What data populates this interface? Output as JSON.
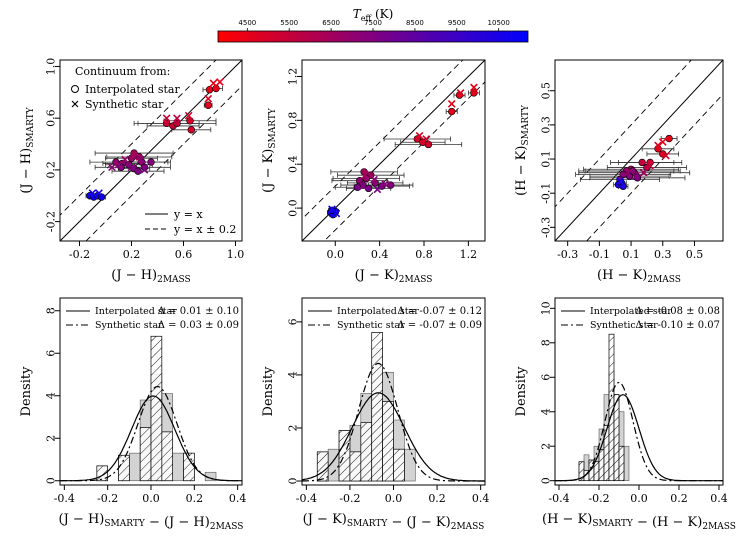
{
  "colorbar": {
    "label": "T_eff (K)",
    "ticks": [
      4500,
      5500,
      6500,
      7500,
      8500,
      9500,
      10500
    ],
    "range": [
      3800,
      11200
    ],
    "colors": [
      "#ff0000",
      "#0000ff"
    ]
  },
  "chart_data": [
    {
      "type": "scatter",
      "id": "jh",
      "xlabel": "(J − H)2MASS",
      "ylabel": "(J − H)SMARTY",
      "xlim": [
        -0.35,
        1.05
      ],
      "ylim": [
        -0.35,
        1.05
      ],
      "xticks": [
        -0.2,
        0.2,
        0.6,
        1.0
      ],
      "yticks": [
        -0.2,
        0.2,
        0.6,
        1.0
      ],
      "legend_title": "Continuum from:",
      "legend_markers": [
        "Interpolated star",
        "Synthetic star"
      ],
      "legend_lines": [
        "y = x",
        "y = x ± 0.2"
      ],
      "interpolated": [
        {
          "x": 0.8,
          "y": 0.82,
          "t": 4400,
          "ex": 0.05
        },
        {
          "x": 0.85,
          "y": 0.83,
          "t": 4500,
          "ex": 0.05
        },
        {
          "x": 0.79,
          "y": 0.7,
          "t": 4700,
          "ex": 0.03
        },
        {
          "x": 0.65,
          "y": 0.58,
          "t": 4900,
          "ex": 0.2
        },
        {
          "x": 0.66,
          "y": 0.51,
          "t": 5000,
          "ex": 0.15
        },
        {
          "x": 0.47,
          "y": 0.56,
          "t": 5300,
          "ex": 0.25
        },
        {
          "x": 0.52,
          "y": 0.54,
          "t": 5400,
          "ex": 0.2
        },
        {
          "x": 0.55,
          "y": 0.56,
          "t": 5500,
          "ex": 0.3
        },
        {
          "x": 0.22,
          "y": 0.33,
          "t": 6400,
          "ex": 0.3
        },
        {
          "x": 0.26,
          "y": 0.3,
          "t": 6600,
          "ex": 0.25
        },
        {
          "x": 0.2,
          "y": 0.29,
          "t": 6800,
          "ex": 0.2
        },
        {
          "x": 0.08,
          "y": 0.26,
          "t": 7000,
          "ex": 0.2
        },
        {
          "x": 0.13,
          "y": 0.25,
          "t": 7100,
          "ex": 0.15
        },
        {
          "x": 0.28,
          "y": 0.26,
          "t": 7200,
          "ex": 0.2
        },
        {
          "x": 0.18,
          "y": 0.24,
          "t": 7300,
          "ex": 0.18
        },
        {
          "x": 0.3,
          "y": 0.22,
          "t": 7400,
          "ex": 0.2
        },
        {
          "x": 0.22,
          "y": 0.21,
          "t": 7500,
          "ex": 0.12
        },
        {
          "x": 0.25,
          "y": 0.19,
          "t": 7600,
          "ex": 0.2
        },
        {
          "x": 0.12,
          "y": 0.22,
          "t": 7500,
          "ex": 0.2
        },
        {
          "x": 0.35,
          "y": 0.26,
          "t": 7300,
          "ex": 0.15
        },
        {
          "x": -0.12,
          "y": 0.0,
          "t": 10600,
          "ex": 0.03
        },
        {
          "x": -0.09,
          "y": -0.01,
          "t": 10700,
          "ex": 0.03
        },
        {
          "x": -0.06,
          "y": 0.0,
          "t": 10500,
          "ex": 0.03
        },
        {
          "x": -0.03,
          "y": -0.01,
          "t": 10600,
          "ex": 0.03
        }
      ],
      "synthetic": [
        {
          "x": 0.83,
          "y": 0.87,
          "t": 4400
        },
        {
          "x": 0.88,
          "y": 0.88,
          "t": 4500
        },
        {
          "x": 0.79,
          "y": 0.75,
          "t": 4700
        },
        {
          "x": 0.64,
          "y": 0.62,
          "t": 4900
        },
        {
          "x": 0.47,
          "y": 0.6,
          "t": 5300
        },
        {
          "x": 0.55,
          "y": 0.6,
          "t": 5500
        },
        {
          "x": 0.22,
          "y": 0.3,
          "t": 6500
        },
        {
          "x": 0.15,
          "y": 0.28,
          "t": 6800
        },
        {
          "x": 0.1,
          "y": 0.24,
          "t": 7000
        },
        {
          "x": 0.27,
          "y": 0.28,
          "t": 7100
        },
        {
          "x": 0.2,
          "y": 0.22,
          "t": 7400
        },
        {
          "x": 0.3,
          "y": 0.2,
          "t": 7500
        },
        {
          "x": 0.05,
          "y": 0.22,
          "t": 7200
        },
        {
          "x": -0.1,
          "y": 0.02,
          "t": 10500
        },
        {
          "x": -0.05,
          "y": 0.02,
          "t": 10600
        }
      ]
    },
    {
      "type": "scatter",
      "id": "jk",
      "xlabel": "(J − K)2MASS",
      "ylabel": "(J − K)SMARTY",
      "xlim": [
        -0.3,
        1.35
      ],
      "ylim": [
        -0.3,
        1.35
      ],
      "xticks": [
        0.0,
        0.4,
        0.8,
        1.2
      ],
      "yticks": [
        0.0,
        0.4,
        0.8,
        1.2
      ],
      "interpolated": [
        {
          "x": 1.05,
          "y": 0.88,
          "t": 4400,
          "ex": 0.05
        },
        {
          "x": 1.25,
          "y": 1.05,
          "t": 4500,
          "ex": 0.05
        },
        {
          "x": 1.12,
          "y": 1.03,
          "t": 4700,
          "ex": 0.05
        },
        {
          "x": 0.74,
          "y": 0.63,
          "t": 4900,
          "ex": 0.3
        },
        {
          "x": 0.79,
          "y": 0.6,
          "t": 5000,
          "ex": 0.2
        },
        {
          "x": 0.84,
          "y": 0.58,
          "t": 5200,
          "ex": 0.3
        },
        {
          "x": 0.26,
          "y": 0.33,
          "t": 6400,
          "ex": 0.3
        },
        {
          "x": 0.32,
          "y": 0.3,
          "t": 6600,
          "ex": 0.3
        },
        {
          "x": 0.28,
          "y": 0.27,
          "t": 6900,
          "ex": 0.3
        },
        {
          "x": 0.22,
          "y": 0.25,
          "t": 7000,
          "ex": 0.25
        },
        {
          "x": 0.36,
          "y": 0.23,
          "t": 7200,
          "ex": 0.25
        },
        {
          "x": 0.25,
          "y": 0.21,
          "t": 7400,
          "ex": 0.2
        },
        {
          "x": 0.42,
          "y": 0.2,
          "t": 7500,
          "ex": 0.25
        },
        {
          "x": 0.3,
          "y": 0.18,
          "t": 7700,
          "ex": 0.2
        },
        {
          "x": 0.5,
          "y": 0.21,
          "t": 7300,
          "ex": 0.2
        },
        {
          "x": 0.2,
          "y": 0.19,
          "t": 7600,
          "ex": 0.2
        },
        {
          "x": -0.04,
          "y": -0.04,
          "t": 10600,
          "ex": 0.03
        },
        {
          "x": -0.02,
          "y": -0.06,
          "t": 10700,
          "ex": 0.03
        },
        {
          "x": 0.0,
          "y": -0.03,
          "t": 10500,
          "ex": 0.03
        },
        {
          "x": -0.03,
          "y": -0.02,
          "t": 10600,
          "ex": 0.03
        }
      ],
      "synthetic": [
        {
          "x": 1.05,
          "y": 0.95,
          "t": 4400
        },
        {
          "x": 1.13,
          "y": 1.05,
          "t": 4700
        },
        {
          "x": 1.25,
          "y": 1.1,
          "t": 4500
        },
        {
          "x": 0.76,
          "y": 0.66,
          "t": 4900
        },
        {
          "x": 0.82,
          "y": 0.63,
          "t": 5100
        },
        {
          "x": 0.27,
          "y": 0.3,
          "t": 6500
        },
        {
          "x": 0.35,
          "y": 0.26,
          "t": 7000
        },
        {
          "x": 0.45,
          "y": 0.22,
          "t": 7300
        },
        {
          "x": 0.25,
          "y": 0.2,
          "t": 7500
        },
        {
          "x": 0.38,
          "y": 0.17,
          "t": 7700
        },
        {
          "x": -0.03,
          "y": -0.01,
          "t": 10500
        },
        {
          "x": 0.01,
          "y": -0.05,
          "t": 10600
        }
      ]
    },
    {
      "type": "scatter",
      "id": "hk",
      "xlabel": "(H − K)2MASS",
      "ylabel": "(H − K)SMARTY",
      "xlim": [
        -0.38,
        0.68
      ],
      "ylim": [
        -0.38,
        0.68
      ],
      "xticks": [
        -0.3,
        -0.1,
        0.1,
        0.3,
        0.5
      ],
      "yticks": [
        -0.3,
        -0.1,
        0.1,
        0.3,
        0.5
      ],
      "interpolated": [
        {
          "x": 0.34,
          "y": 0.22,
          "t": 4400,
          "ex": 0.05
        },
        {
          "x": 0.27,
          "y": 0.16,
          "t": 4600,
          "ex": 0.1
        },
        {
          "x": 0.3,
          "y": 0.13,
          "t": 4800,
          "ex": 0.1
        },
        {
          "x": 0.22,
          "y": 0.08,
          "t": 5200,
          "ex": 0.2
        },
        {
          "x": 0.17,
          "y": 0.08,
          "t": 5500,
          "ex": 0.2
        },
        {
          "x": 0.2,
          "y": 0.05,
          "t": 5800,
          "ex": 0.25
        },
        {
          "x": 0.1,
          "y": 0.04,
          "t": 6500,
          "ex": 0.3
        },
        {
          "x": 0.07,
          "y": 0.03,
          "t": 6800,
          "ex": 0.3
        },
        {
          "x": 0.12,
          "y": 0.02,
          "t": 7000,
          "ex": 0.35
        },
        {
          "x": 0.05,
          "y": 0.01,
          "t": 7200,
          "ex": 0.3
        },
        {
          "x": 0.09,
          "y": 0.0,
          "t": 7400,
          "ex": 0.25
        },
        {
          "x": 0.14,
          "y": -0.01,
          "t": 7600,
          "ex": 0.3
        },
        {
          "x": 0.03,
          "y": -0.02,
          "t": 7800,
          "ex": 0.25
        },
        {
          "x": 0.11,
          "y": 0.03,
          "t": 7100,
          "ex": 0.3
        },
        {
          "x": 0.02,
          "y": -0.05,
          "t": 10500,
          "ex": 0.03
        },
        {
          "x": 0.04,
          "y": -0.04,
          "t": 10600,
          "ex": 0.03
        },
        {
          "x": 0.05,
          "y": -0.06,
          "t": 10400,
          "ex": 0.03
        }
      ],
      "synthetic": [
        {
          "x": 0.3,
          "y": 0.2,
          "t": 4500
        },
        {
          "x": 0.27,
          "y": 0.18,
          "t": 4700
        },
        {
          "x": 0.32,
          "y": 0.12,
          "t": 4900
        },
        {
          "x": 0.22,
          "y": 0.06,
          "t": 5500
        },
        {
          "x": 0.08,
          "y": 0.02,
          "t": 7000
        },
        {
          "x": 0.13,
          "y": 0.0,
          "t": 7300
        },
        {
          "x": 0.18,
          "y": 0.02,
          "t": 6500
        },
        {
          "x": 0.03,
          "y": -0.03,
          "t": 10500
        }
      ]
    },
    {
      "type": "bar",
      "id": "djh",
      "xlabel": "(J − H)SMARTY − (J − H)2MASS",
      "ylabel": "Density",
      "xlim": [
        -0.42,
        0.42
      ],
      "ylim": [
        -0.2,
        8.6
      ],
      "xticks": [
        -0.4,
        -0.2,
        0.0,
        0.2,
        0.4
      ],
      "yticks": [
        0,
        2,
        4,
        6,
        8
      ],
      "bin_width": 0.05,
      "bin_edges_start": -0.3,
      "interpolated_hist": [
        0,
        0.7,
        0,
        1.1,
        1.3,
        3.8,
        5.0,
        4.1,
        1.3,
        0.9,
        0,
        0.4
      ],
      "synthetic_hist": [
        0,
        0.7,
        0,
        1.2,
        0,
        2.5,
        6.8,
        2.3,
        0,
        1.3,
        0,
        0
      ],
      "interpolated_fit": {
        "mu": 0.01,
        "sigma": 0.1
      },
      "synthetic_fit": {
        "mu": 0.03,
        "sigma": 0.09
      },
      "legend": [
        "Interpolated star",
        "Synthetic star"
      ],
      "stats": [
        "Δ = 0.01 ± 0.10",
        "Δ = 0.03 ± 0.09"
      ]
    },
    {
      "type": "bar",
      "id": "djk",
      "xlabel": "(J − K)SMARTY − (J − K)2MASS",
      "ylabel": "Density",
      "xlim": [
        -0.42,
        0.42
      ],
      "ylim": [
        -0.15,
        6.9
      ],
      "xticks": [
        -0.4,
        -0.2,
        0.0,
        0.2,
        0.4
      ],
      "yticks": [
        0,
        2,
        4,
        6
      ],
      "bin_width": 0.05,
      "bin_edges_start": -0.35,
      "interpolated_hist": [
        1.1,
        1.2,
        1.9,
        2.1,
        3.3,
        5.0,
        4.1,
        2.3,
        1.2,
        0
      ],
      "synthetic_hist": [
        1.1,
        0,
        1.9,
        1.1,
        2.2,
        5.6,
        3.0,
        1.2,
        0,
        0
      ],
      "interpolated_fit": {
        "mu": -0.07,
        "sigma": 0.12
      },
      "synthetic_fit": {
        "mu": -0.07,
        "sigma": 0.09
      },
      "legend": [
        "Interpolated star",
        "Synthetic star"
      ],
      "stats": [
        "Δ = -0.07 ± 0.12",
        "Δ = -0.07 ± 0.09"
      ]
    },
    {
      "type": "bar",
      "id": "dhk",
      "xlabel": "(H − K)SMARTY − (H − K)2MASS",
      "ylabel": "Density",
      "xlim": [
        -0.42,
        0.42
      ],
      "ylim": [
        -0.25,
        10.6
      ],
      "xticks": [
        -0.4,
        -0.2,
        0.0,
        0.2,
        0.4
      ],
      "yticks": [
        0,
        2,
        4,
        6,
        8,
        10
      ],
      "bin_width": 0.025,
      "bin_edges_start": -0.3,
      "interpolated_hist": [
        1.1,
        1.5,
        1.2,
        2.0,
        3.0,
        5.0,
        6.3,
        5.0,
        4.0,
        2.0,
        0,
        0
      ],
      "synthetic_hist": [
        1.1,
        0.6,
        1.2,
        1.1,
        1.8,
        3.2,
        8.5,
        5.0,
        2.0,
        0,
        0,
        0
      ],
      "interpolated_fit": {
        "mu": -0.08,
        "sigma": 0.08
      },
      "synthetic_fit": {
        "mu": -0.1,
        "sigma": 0.07
      },
      "legend": [
        "Interpolated star",
        "Synthetic star"
      ],
      "stats": [
        "Δ = -0.08 ± 0.08",
        "Δ = -0.10 ± 0.07"
      ]
    }
  ]
}
